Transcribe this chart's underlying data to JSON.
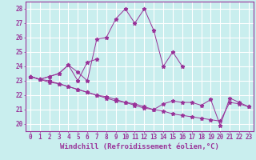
{
  "xlabel": "Windchill (Refroidissement éolien,°C)",
  "ylabel": "",
  "bg_color": "#c9eeee",
  "line_color": "#993399",
  "grid_color": "#ffffff",
  "xlim": [
    -0.5,
    23.5
  ],
  "ylim": [
    19.5,
    28.5
  ],
  "xticks": [
    0,
    1,
    2,
    3,
    4,
    5,
    6,
    7,
    8,
    9,
    10,
    11,
    12,
    13,
    14,
    15,
    16,
    17,
    18,
    19,
    20,
    21,
    22,
    23
  ],
  "yticks": [
    20,
    21,
    22,
    23,
    24,
    25,
    26,
    27,
    28
  ],
  "series": [
    [
      23.3,
      23.1,
      23.3,
      23.5,
      24.1,
      23.6,
      23.0,
      25.9,
      26.0,
      27.3,
      28.0,
      27.0,
      28.0,
      26.5,
      24.0,
      25.0,
      24.0,
      null,
      null,
      null,
      null,
      null,
      null,
      null
    ],
    [
      23.3,
      23.1,
      23.3,
      23.5,
      24.1,
      23.0,
      24.3,
      24.5,
      null,
      null,
      null,
      null,
      null,
      null,
      null,
      null,
      null,
      null,
      null,
      null,
      null,
      null,
      null,
      null
    ],
    [
      23.3,
      23.1,
      23.0,
      22.8,
      22.6,
      22.4,
      22.2,
      22.0,
      21.8,
      21.6,
      21.5,
      21.3,
      21.1,
      21.0,
      21.4,
      21.6,
      21.5,
      21.5,
      21.3,
      21.7,
      19.9,
      21.8,
      21.5,
      21.2
    ],
    [
      23.3,
      23.1,
      22.9,
      22.8,
      22.6,
      22.4,
      22.2,
      22.0,
      21.9,
      21.7,
      21.5,
      21.4,
      21.2,
      21.0,
      20.9,
      20.7,
      20.6,
      20.5,
      20.4,
      20.3,
      20.2,
      21.5,
      21.4,
      21.2
    ]
  ],
  "tick_fontsize": 5.5,
  "label_fontsize": 6.5
}
